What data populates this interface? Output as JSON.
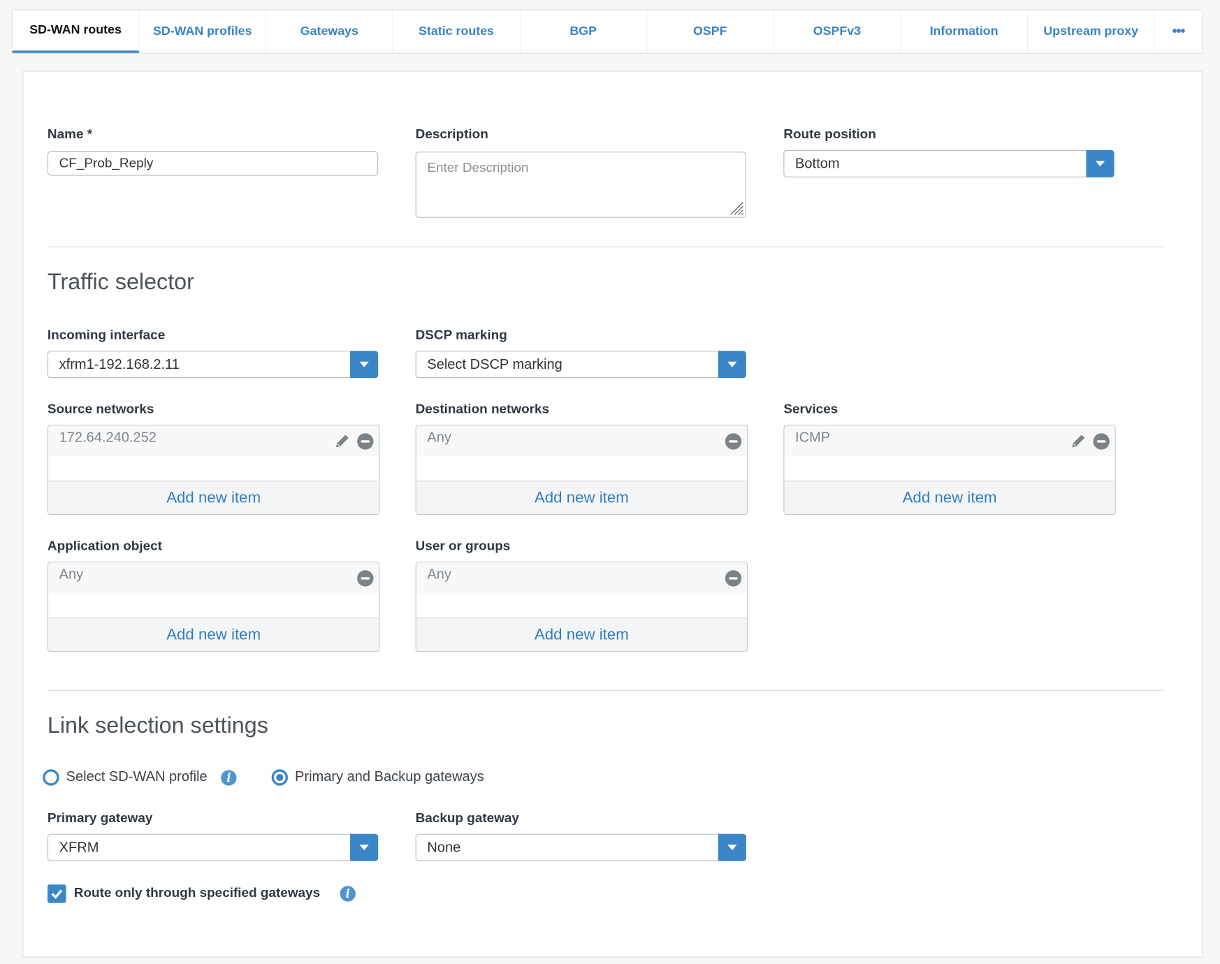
{
  "tabs": [
    {
      "label": "SD-WAN routes",
      "active": true
    },
    {
      "label": "SD-WAN profiles"
    },
    {
      "label": "Gateways"
    },
    {
      "label": "Static routes"
    },
    {
      "label": "BGP"
    },
    {
      "label": "OSPF"
    },
    {
      "label": "OSPFv3"
    },
    {
      "label": "Information"
    },
    {
      "label": "Upstream proxy"
    },
    {
      "label": "•••",
      "icon": "more-icon"
    }
  ],
  "form": {
    "name": {
      "label": "Name *",
      "value": "CF_Prob_Reply"
    },
    "description": {
      "label": "Description",
      "placeholder": "Enter Description"
    },
    "route_position": {
      "label": "Route position",
      "value": "Bottom"
    }
  },
  "traffic_selector": {
    "title": "Traffic selector",
    "incoming_interface": {
      "label": "Incoming interface",
      "value": "xfrm1-192.168.2.11"
    },
    "dscp_marking": {
      "label": "DSCP marking",
      "value": "Select DSCP marking"
    },
    "source_networks": {
      "label": "Source networks",
      "items": [
        "172.64.240.252"
      ],
      "add": "Add new item"
    },
    "destination_networks": {
      "label": "Destination networks",
      "items": [
        "Any"
      ],
      "add": "Add new item"
    },
    "services": {
      "label": "Services",
      "items": [
        "ICMP"
      ],
      "add": "Add new item"
    },
    "application_object": {
      "label": "Application object",
      "items": [
        "Any"
      ],
      "add": "Add new item"
    },
    "user_or_groups": {
      "label": "User or groups",
      "items": [
        "Any"
      ],
      "add": "Add new item"
    }
  },
  "link_selection": {
    "title": "Link selection settings",
    "options": [
      {
        "label": "Select SD-WAN profile",
        "selected": false
      },
      {
        "label": "Primary and Backup gateways",
        "selected": true
      }
    ],
    "primary_gateway": {
      "label": "Primary gateway",
      "value": "XFRM"
    },
    "backup_gateway": {
      "label": "Backup gateway",
      "value": "None"
    },
    "route_only": {
      "label": "Route only through specified gateways",
      "checked": true
    }
  },
  "colors": {
    "accent": "#3b86c8",
    "link": "#2f7ec4"
  }
}
